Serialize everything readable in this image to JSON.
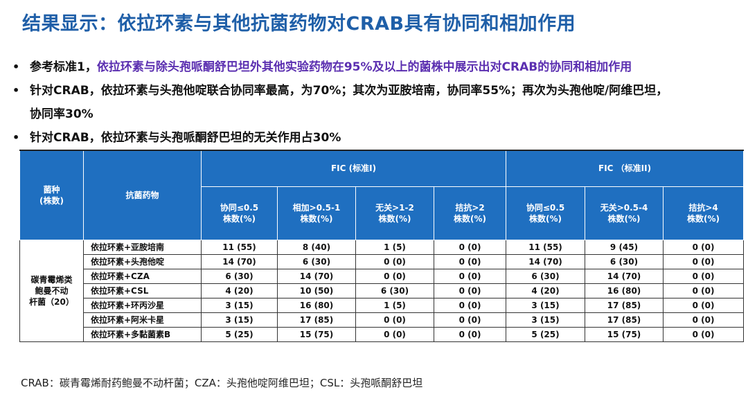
{
  "title": "结果显示：依拉环素与其他抗菌药物对CRAB具有协同和相加作用",
  "bullets": [
    {
      "prefix": "参考标准1，",
      "highlight": "依拉环素与除头孢哌酮舒巴坦外其他实验药物在95%及以上的菌株中展示出对CRAB的协同和相加作用"
    },
    {
      "line1": "针对CRAB，依拉环素与头孢他啶联合协同率最高，为70%；其次为亚胺培南，协同率55%；再次为头孢他啶/阿维巴坦，",
      "line2": "协同率30%"
    },
    {
      "text": "针对CRAB，依拉环素与头孢哌酮舒巴坦的无关作用占30%"
    }
  ],
  "table": {
    "col_species": "菌种\n(株数)",
    "col_drug": "抗菌药物",
    "group1": "FIC (标准I)",
    "group2": "FIC （标准II)",
    "g1_cols": [
      "协同≤0.5\n株数(%)",
      "相加>0.5-1\n株数(%)",
      "无关>1-2\n株数(%)",
      "拮抗>2\n株数(%)"
    ],
    "g2_cols": [
      "协同≤0.5\n株数(%)",
      "无关>0.5-4\n株数(%)",
      "拮抗>4\n株数(%)"
    ],
    "species": "碳青霉烯类\n鲍曼不动\n杆菌（20）",
    "rows": [
      {
        "drug": "依拉环素+亚胺培南",
        "v": [
          "11 (55)",
          "8 (40)",
          "1 (5)",
          "0 (0)",
          "11 (55)",
          "9 (45)",
          "0 (0)"
        ]
      },
      {
        "drug": "依拉环素+头孢他啶",
        "v": [
          "14 (70)",
          "6 (30)",
          "0 (0)",
          "0 (0)",
          "14 (70)",
          "6 (30)",
          "0 (0)"
        ]
      },
      {
        "drug": "依拉环素+CZA",
        "v": [
          "6 (30)",
          "14 (70)",
          "0 (0)",
          "0 (0)",
          "6 (30)",
          "14 (70)",
          "0 (0)"
        ]
      },
      {
        "drug": "依拉环素+CSL",
        "v": [
          "4 (20)",
          "10 (50)",
          "6 (30)",
          "0 (0)",
          "4 (20)",
          "16 (80)",
          "0 (0)"
        ]
      },
      {
        "drug": "依拉环素+环丙沙星",
        "v": [
          "3 (15)",
          "16 (80)",
          "1 (5)",
          "0 (0)",
          "3 (15)",
          "17 (85)",
          "0 (0)"
        ]
      },
      {
        "drug": "依拉环素+阿米卡星",
        "v": [
          "3 (15)",
          "17 (85)",
          "0 (0)",
          "0 (0)",
          "3 (15)",
          "17 (85)",
          "0 (0)"
        ]
      },
      {
        "drug": "依拉环素+多黏菌素B",
        "v": [
          "5 (25)",
          "15 (75)",
          "0 (0)",
          "0 (0)",
          "5 (25)",
          "15 (75)",
          "0 (0)"
        ]
      }
    ]
  },
  "footnote": "CRAB：碳青霉烯耐药鲍曼不动杆菌；CZA：头孢他啶阿维巴坦；CSL：头孢哌酮舒巴坦",
  "colors": {
    "title": "#1f5fa8",
    "highlight": "#5b2fb0",
    "header_bg": "#1f6fc0"
  }
}
